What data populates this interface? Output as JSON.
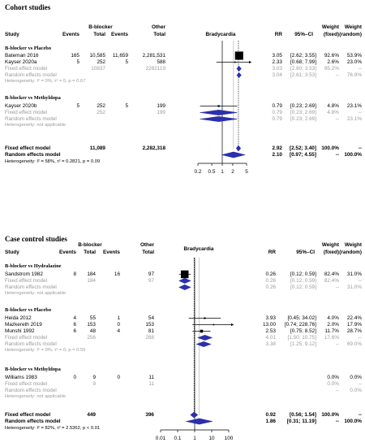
{
  "cohort": {
    "title": "Cohort studies",
    "hdr": {
      "group1": "B-blocker",
      "group2": "Other",
      "study": "Study",
      "events1": "Events",
      "total1": "Total",
      "events2": "Events",
      "total2": "Total",
      "plot": "Bradycardia",
      "rr": "RR",
      "ci": "95%–CI",
      "wfixed_top": "Weight",
      "wfixed_bot": "(fixed)",
      "wrandom_top": "Weight",
      "wrandom_bot": "(random)"
    },
    "sub1": {
      "heading": "B-blocker vs Placebo",
      "studies": [
        {
          "name": "Bateman 2016",
          "e1": "165",
          "t1": "10,585",
          "e2": "11,659",
          "t2": "2,281,531",
          "rr": "3.05",
          "ci": "[2.62; 3.55]",
          "wf": "92.6%",
          "wr": "53.9%"
        },
        {
          "name": "Kayser 2020a",
          "e1": "5",
          "t1": "252",
          "e2": "5",
          "t2": "588",
          "rr": "2.33",
          "ci": "[0.68; 7.99]",
          "wf": "2.6%",
          "wr": "23.0%"
        }
      ],
      "fixed": {
        "label": "Fixed effect model",
        "t1": "10837",
        "t2": "2282119",
        "rr": "3.03",
        "ci": "[2.60; 3.53]",
        "wf": "95.2%",
        "wr": "--"
      },
      "random": {
        "label": "Random effects model",
        "rr": "3.04",
        "ci": "[2.61; 3.53]",
        "wf": "--",
        "wr": "76.9%"
      },
      "het": "Heterogeneity: I² = 0%, τ² = 0, p = 0.67"
    },
    "sub2": {
      "heading": "B-blocker vs Methyldopa",
      "studies": [
        {
          "name": "Kayser 2020b",
          "e1": "5",
          "t1": "252",
          "e2": "5",
          "t2": "199",
          "rr": "0.79",
          "ci": "[0.23; 2.69]",
          "wf": "4.8%",
          "wr": "23.1%"
        }
      ],
      "fixed": {
        "label": "Fixed effect model",
        "t1": "252",
        "t2": "199",
        "rr": "0.79",
        "ci": "[0.23; 2.69]",
        "wf": "4.8%",
        "wr": "--"
      },
      "random": {
        "label": "Random effects model",
        "rr": "0.79",
        "ci": "[0.23; 2.69]",
        "wf": "--",
        "wr": "23.1%"
      },
      "het": "Heterogeneity: not applicable"
    },
    "overall": {
      "fixed_label": "Fixed effect model",
      "t1": "11,089",
      "t2": "2,282,318",
      "rr": "2.92",
      "ci": "[2.52; 3.40]",
      "wf": "100.0%",
      "wr": "--",
      "random_label": "Random effects model",
      "rrr": "2.10",
      "cir": "[0.97; 4.55]",
      "wfr": "--",
      "wrr": "100.0%",
      "het": "Heterogeneity: I² = 58%, τ² = 0.2821, p = 0.09"
    },
    "axis_ticks": [
      "0.2",
      "0.5",
      "1",
      "2",
      "5"
    ]
  },
  "casecontrol": {
    "title": "Case control studies",
    "hdr": {
      "group1": "B-blocker",
      "group2": "Other",
      "study": "Study",
      "events1": "Events",
      "total1": "Total",
      "events2": "Events",
      "total2": "Total",
      "plot": "Bradycardia",
      "rr": "RR",
      "ci": "95%–CI",
      "wfixed_top": "Weight",
      "wfixed_bot": "(fixed)",
      "wrandom_top": "Weight",
      "wrandom_bot": "(random)"
    },
    "sub1": {
      "heading": "B-blocker vs Hydralazine",
      "studies": [
        {
          "name": "Sandstrom 1982",
          "e1": "8",
          "t1": "184",
          "e2": "16",
          "t2": "97",
          "rr": "0.26",
          "ci": "[0.12; 0.59]",
          "wf": "82.4%",
          "wr": "31.0%"
        }
      ],
      "fixed": {
        "label": "Fixed effect model",
        "t1": "184",
        "t2": "97",
        "rr": "0.26",
        "ci": "[0.12; 0.59]",
        "wf": "82.4%",
        "wr": "--"
      },
      "random": {
        "label": "Random effects model",
        "rr": "0.26",
        "ci": "[0.12; 0.59]",
        "wf": "--",
        "wr": "31.0%"
      },
      "het": "Heterogeneity: not applicable"
    },
    "sub2": {
      "heading": "B-blocker vs Placebo",
      "studies": [
        {
          "name": "Heida 2012",
          "e1": "4",
          "t1": "55",
          "e2": "1",
          "t2": "54",
          "rr": "3.93",
          "ci": "[0.45; 34.02]",
          "wf": "4.0%",
          "wr": "22.4%"
        },
        {
          "name": "Mazkereth 2019",
          "e1": "6",
          "t1": "153",
          "e2": "0",
          "t2": "153",
          "rr": "13.00",
          "ci": "[0.74; 228.76]",
          "wf": "2.0%",
          "wr": "17.9%"
        },
        {
          "name": "Munshi 1992",
          "e1": "6",
          "t1": "48",
          "e2": "4",
          "t2": "81",
          "rr": "2.53",
          "ci": "[0.75; 8.52]",
          "wf": "11.7%",
          "wr": "28.7%"
        }
      ],
      "fixed": {
        "label": "Fixed effect model",
        "t1": "256",
        "t2": "288",
        "rr": "4.01",
        "ci": "[1.50; 10.75]",
        "wf": "17.6%",
        "wr": "--"
      },
      "random": {
        "label": "Random effects model",
        "rr": "3.38",
        "ci": "[1.25; 9.12]",
        "wf": "--",
        "wr": "69.0%"
      },
      "het": "Heterogeneity: I² = 0%, τ² = 0, p = 0.55"
    },
    "sub3": {
      "heading": "B-blocker vs Methyldopa",
      "studies": [
        {
          "name": "Williams 1983",
          "e1": "0",
          "t1": "9",
          "e2": "0",
          "t2": "11",
          "rr": "",
          "ci": "",
          "wf": "0.0%",
          "wr": "0.0%"
        }
      ],
      "fixed": {
        "label": "Fixed effect model",
        "t1": "9",
        "t2": "11",
        "rr": "",
        "ci": "",
        "wf": "0.0%",
        "wr": "--"
      },
      "random": {
        "label": "Random effects model",
        "rr": "",
        "ci": "",
        "wf": "--",
        "wr": "0.0%"
      },
      "het": "Heterogeneity: not applicable"
    },
    "overall": {
      "fixed_label": "Fixed effect model",
      "t1": "449",
      "t2": "396",
      "rr": "0.92",
      "ci": "[0.56; 1.54]",
      "wf": "100.0%",
      "wr": "--",
      "random_label": "Random effects model",
      "rrr": "1.86",
      "cir": "[0.31; 11.19]",
      "wfr": "--",
      "wrr": "100.0%",
      "het": "Heterogeneity: I² = 82%, τ² = 2.5362, p < 0.01"
    },
    "axis_ticks": [
      "0.01",
      "0.1",
      "1",
      "10",
      "100"
    ]
  },
  "chart_data": [
    {
      "type": "forest",
      "title": "Cohort studies",
      "xlabel": "Bradycardia",
      "scale": "log",
      "xlim": [
        0.2,
        5
      ],
      "ticks": [
        0.2,
        0.5,
        1,
        2,
        5
      ],
      "null_line": 1,
      "pooled_line": 2.92,
      "studies": [
        {
          "name": "Bateman 2016",
          "rr": 3.05,
          "lo": 2.62,
          "hi": 3.55,
          "weight": 92.6
        },
        {
          "name": "Kayser 2020a",
          "rr": 2.33,
          "lo": 0.68,
          "hi": 7.99,
          "weight": 2.6
        },
        {
          "name": "Kayser 2020b",
          "rr": 0.79,
          "lo": 0.23,
          "hi": 2.69,
          "weight": 4.8
        }
      ],
      "pooled": [
        {
          "name": "Fixed effect model",
          "rr": 3.03,
          "lo": 2.6,
          "hi": 3.53
        },
        {
          "name": "Random effects model",
          "rr": 3.04,
          "lo": 2.61,
          "hi": 3.53
        },
        {
          "name": "Fixed effect model",
          "rr": 0.79,
          "lo": 0.23,
          "hi": 2.69
        },
        {
          "name": "Random effects model",
          "rr": 0.79,
          "lo": 0.23,
          "hi": 2.69
        },
        {
          "name": "Fixed effect model",
          "rr": 2.92,
          "lo": 2.52,
          "hi": 3.4
        },
        {
          "name": "Random effects model",
          "rr": 2.1,
          "lo": 0.97,
          "hi": 4.55
        }
      ]
    },
    {
      "type": "forest",
      "title": "Case control studies",
      "xlabel": "Bradycardia",
      "scale": "log",
      "xlim": [
        0.01,
        100
      ],
      "ticks": [
        0.01,
        0.1,
        1,
        10,
        100
      ],
      "null_line": 1,
      "pooled_line": 0.92,
      "studies": [
        {
          "name": "Sandstrom 1982",
          "rr": 0.26,
          "lo": 0.12,
          "hi": 0.59,
          "weight": 82.4
        },
        {
          "name": "Heida 2012",
          "rr": 3.93,
          "lo": 0.45,
          "hi": 34.02,
          "weight": 4.0
        },
        {
          "name": "Mazkereth 2019",
          "rr": 13.0,
          "lo": 0.74,
          "hi": 228.76,
          "weight": 2.0
        },
        {
          "name": "Munshi 1992",
          "rr": 2.53,
          "lo": 0.75,
          "hi": 8.52,
          "weight": 11.7
        }
      ],
      "pooled": [
        {
          "name": "Fixed effect model",
          "rr": 0.26,
          "lo": 0.12,
          "hi": 0.59
        },
        {
          "name": "Random effects model",
          "rr": 0.26,
          "lo": 0.12,
          "hi": 0.59
        },
        {
          "name": "Fixed effect model",
          "rr": 4.01,
          "lo": 1.5,
          "hi": 10.75
        },
        {
          "name": "Random effects model",
          "rr": 3.38,
          "lo": 1.25,
          "hi": 9.12
        },
        {
          "name": "Fixed effect model",
          "rr": 0.92,
          "lo": 0.56,
          "hi": 1.54
        },
        {
          "name": "Random effects model",
          "rr": 1.86,
          "lo": 0.31,
          "hi": 11.19
        }
      ]
    }
  ]
}
